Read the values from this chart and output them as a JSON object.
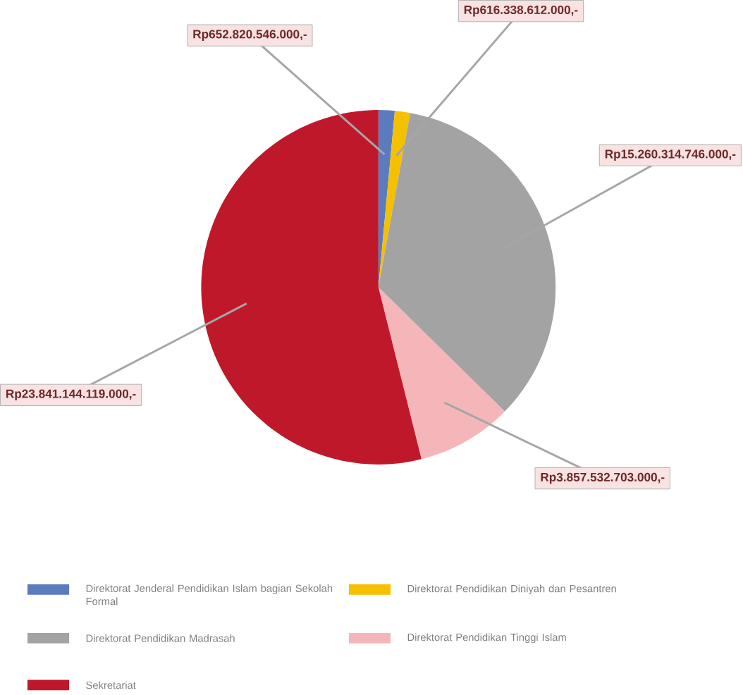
{
  "chart_data": {
    "type": "pie",
    "categories": [
      "Direktorat Jenderal Pendidikan Islam bagian Sekolah Formal",
      "Direktorat Pendidikan Diniyah dan Pesantren",
      "Direktorat Pendidikan Madrasah",
      "Direktorat Pendidikan Tinggi Islam",
      "Sekretariat"
    ],
    "values": [
      652820546000,
      616338612000,
      15260314746000,
      3857532703000,
      23841144119000
    ],
    "value_labels": [
      "Rp652.820.546.000,-",
      "Rp616.338.612.000,-",
      "Rp15.260.314.746.000,-",
      "Rp3.857.532.703.000,-",
      "Rp23.841.144.119.000,-"
    ],
    "colors": [
      "#5b7bbf",
      "#f5c000",
      "#a3a3a3",
      "#f4b6b8",
      "#c0182b"
    ],
    "legend": "bottom"
  }
}
